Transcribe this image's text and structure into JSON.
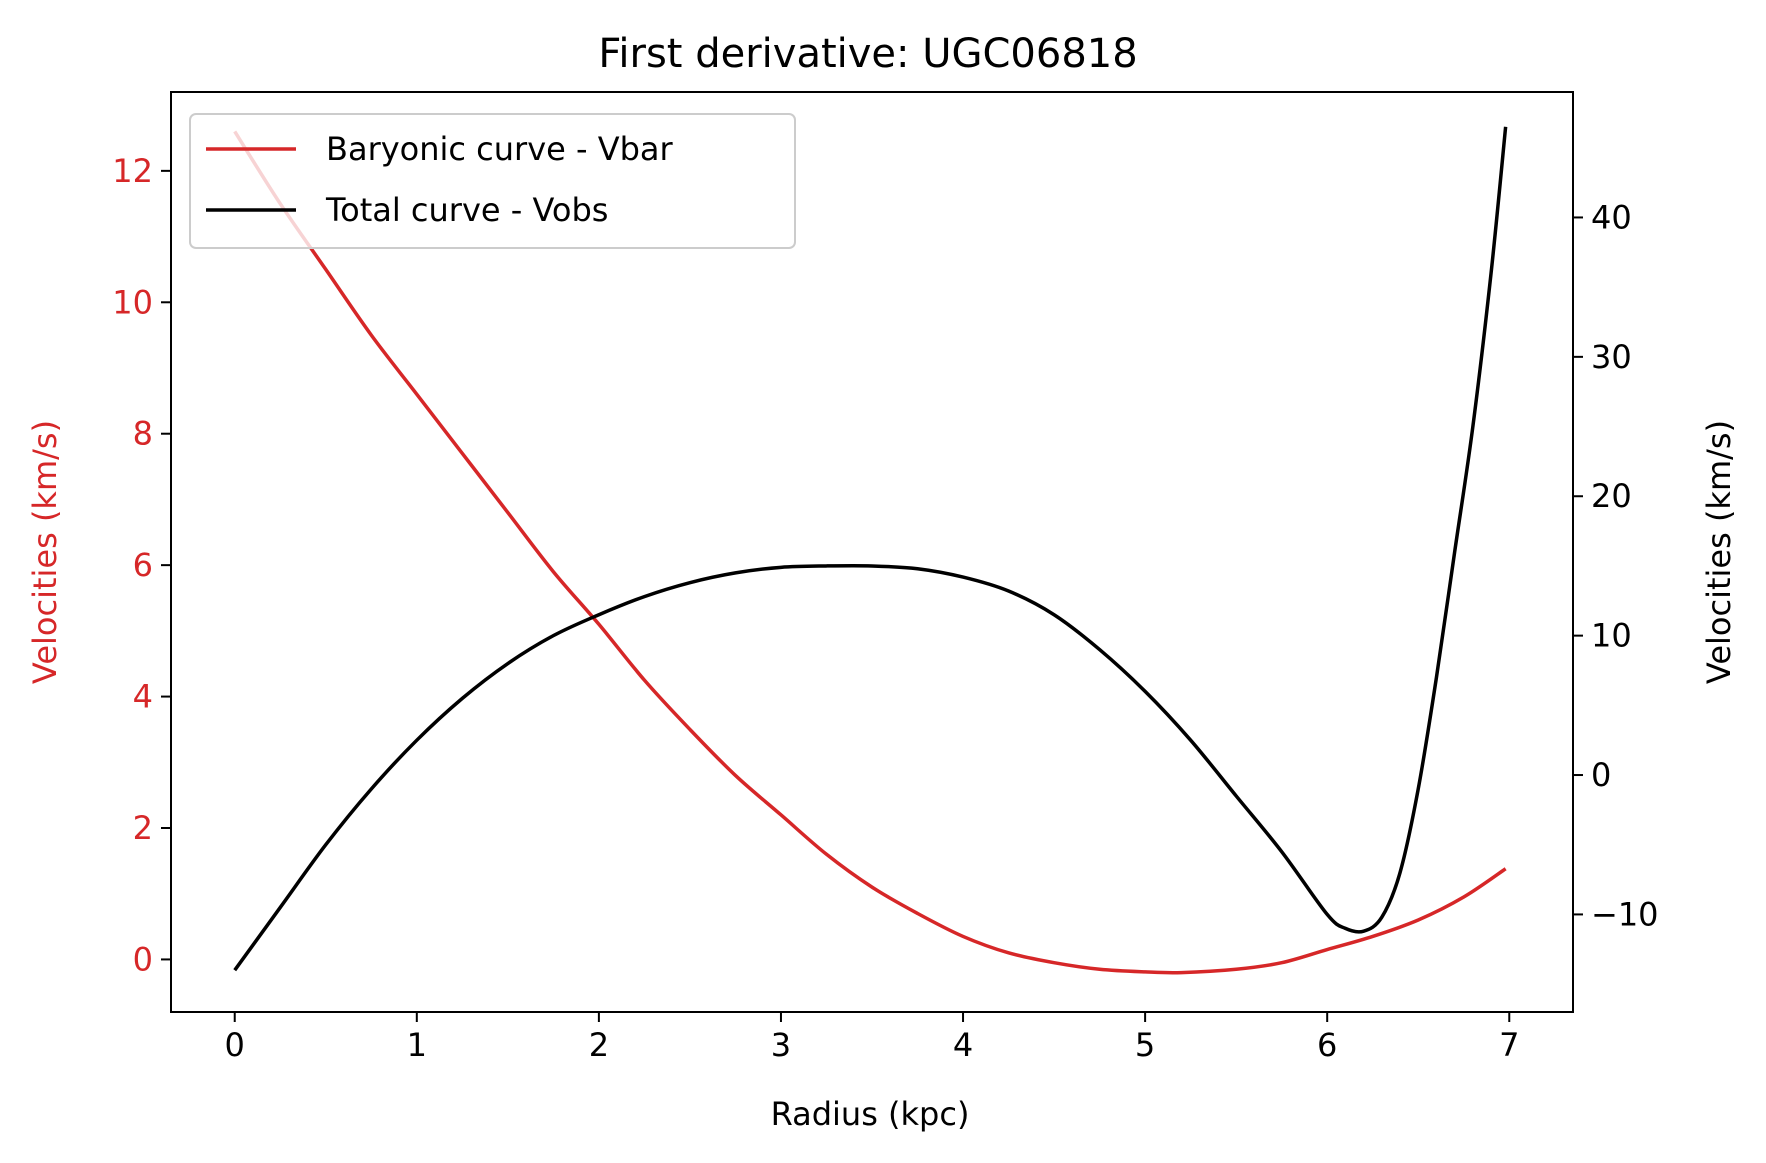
{
  "chart_data": {
    "type": "line",
    "title": "First derivative: UGC06818",
    "xlabel": "Radius (kpc)",
    "ylabel_left": "Velocities (km/s)",
    "ylabel_right": "Velocities (km/s)",
    "xlim": [
      -0.35,
      7.35
    ],
    "ylim_left": [
      -0.8,
      13.2
    ],
    "ylim_right": [
      -17,
      49
    ],
    "x_ticks": [
      "0",
      "1",
      "2",
      "3",
      "4",
      "5",
      "6",
      "7"
    ],
    "y_left_ticks": [
      "0",
      "2",
      "4",
      "6",
      "8",
      "10",
      "12"
    ],
    "y_right_ticks": [
      "−10",
      "0",
      "10",
      "20",
      "30",
      "40"
    ],
    "grid": false,
    "legend_position": "upper-left",
    "series": [
      {
        "name": "Baryonic curve - Vbar",
        "axis": "left",
        "color": "#d62728",
        "x": [
          0.0,
          0.25,
          0.5,
          0.75,
          1.0,
          1.25,
          1.5,
          1.75,
          2.0,
          2.25,
          2.5,
          2.75,
          3.0,
          3.25,
          3.5,
          3.75,
          4.0,
          4.25,
          4.5,
          4.75,
          5.0,
          5.2,
          5.5,
          5.75,
          6.0,
          6.25,
          6.5,
          6.75,
          6.98
        ],
        "y": [
          12.6,
          11.5,
          10.5,
          9.5,
          8.6,
          7.7,
          6.8,
          5.9,
          5.1,
          4.25,
          3.5,
          2.8,
          2.2,
          1.6,
          1.1,
          0.7,
          0.35,
          0.1,
          -0.05,
          -0.15,
          -0.19,
          -0.2,
          -0.15,
          -0.05,
          0.15,
          0.35,
          0.6,
          0.95,
          1.38
        ]
      },
      {
        "name": "Total curve - Vobs",
        "axis": "right",
        "color": "#000000",
        "x": [
          0.0,
          0.25,
          0.5,
          0.75,
          1.0,
          1.25,
          1.5,
          1.75,
          2.0,
          2.25,
          2.5,
          2.75,
          3.0,
          3.25,
          3.5,
          3.75,
          4.0,
          4.25,
          4.5,
          4.75,
          5.0,
          5.25,
          5.5,
          5.75,
          6.0,
          6.1,
          6.2,
          6.3,
          6.4,
          6.5,
          6.6,
          6.7,
          6.8,
          6.9,
          6.98
        ],
        "y": [
          -14,
          -9.5,
          -5,
          -1,
          2.5,
          5.5,
          8,
          10,
          11.5,
          12.8,
          13.8,
          14.5,
          14.9,
          15.0,
          15.0,
          14.8,
          14.2,
          13.2,
          11.5,
          9.0,
          6.0,
          2.5,
          -1.5,
          -5.5,
          -10.0,
          -11.0,
          -11.2,
          -10.2,
          -7.0,
          -1.0,
          7.0,
          16.0,
          25.0,
          36.0,
          46.5
        ]
      }
    ]
  }
}
